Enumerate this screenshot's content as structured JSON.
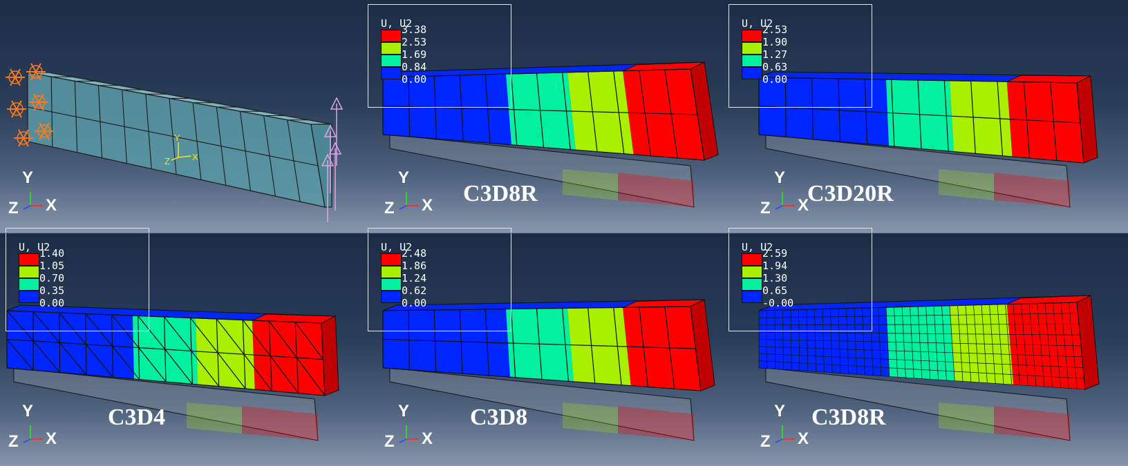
{
  "colors": {
    "red": "#ff0000",
    "yellow_green": "#a8ef00",
    "cyan_green": "#00f0a0",
    "blue": "#0026ff",
    "mesh_plain": "#5a9aa6",
    "boundary_orange": "#ff7a1a",
    "load_pink": "#e6a0e6"
  },
  "triad": {
    "y": "Y",
    "z": "Z",
    "x": "X"
  },
  "inset_axes": {
    "y": "Y",
    "z": "Z",
    "x": "X"
  },
  "panels": [
    {
      "label": "",
      "legend": null
    },
    {
      "label": "C3D8R",
      "legend": {
        "title": "U, U2",
        "values": [
          "3.38",
          "2.53",
          "1.69",
          "0.84",
          "0.00"
        ]
      }
    },
    {
      "label": "C3D20R",
      "legend": {
        "title": "U, U2",
        "values": [
          "2.53",
          "1.90",
          "1.27",
          "0.63",
          "0.00"
        ]
      }
    },
    {
      "label": "C3D4",
      "legend": {
        "title": "U, U2",
        "values": [
          "1.40",
          "1.05",
          "0.70",
          "0.35",
          "0.00"
        ]
      }
    },
    {
      "label": "C3D8",
      "legend": {
        "title": "U, U2",
        "values": [
          "2.48",
          "1.86",
          "1.24",
          "0.62",
          "0.00"
        ]
      }
    },
    {
      "label": "C3D8R",
      "legend": {
        "title": "U, U2",
        "values": [
          "2.59",
          "1.94",
          "1.30",
          "0.65",
          "-0.00"
        ]
      }
    }
  ]
}
